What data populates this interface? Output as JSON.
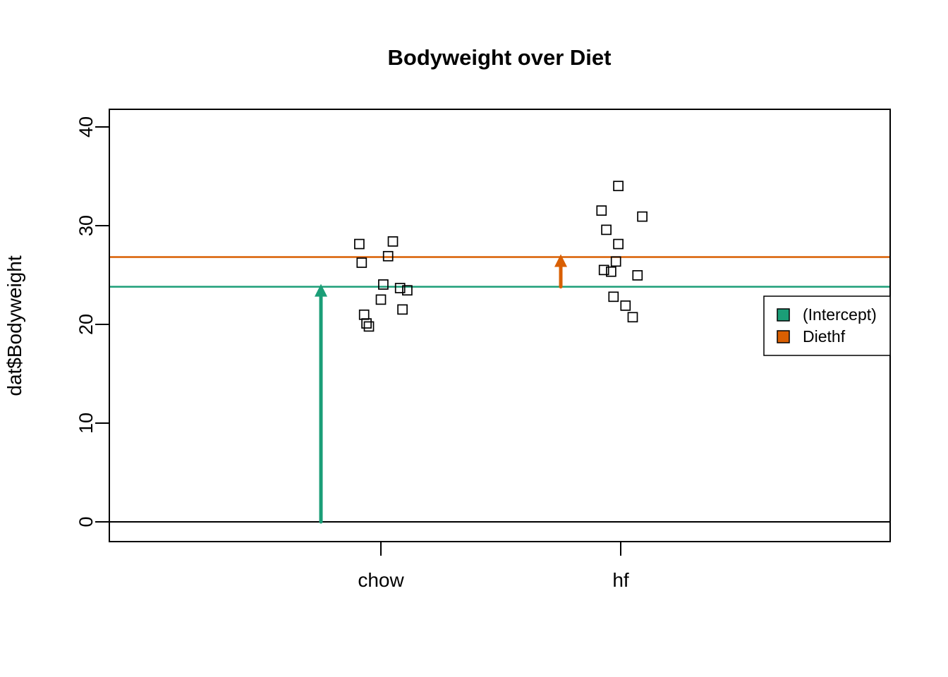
{
  "title": "Bodyweight over Diet",
  "chart_data": {
    "type": "scatter",
    "title": "Bodyweight over Diet",
    "xlabel": "",
    "ylabel": "dat$Bodyweight",
    "x_tick_labels": [
      "chow",
      "hf"
    ],
    "categories_x": [
      1,
      2
    ],
    "yticks": [
      0,
      10,
      20,
      30,
      40
    ],
    "ylim": [
      -2,
      41.8
    ],
    "xlim": [
      -0.13,
      3.12
    ],
    "grid": false,
    "marker": "open-square",
    "series": [
      {
        "name": "chow",
        "color": "#000000",
        "points": [
          {
            "x": 0.91,
            "y": 28.14
          },
          {
            "x": 0.92,
            "y": 26.25
          },
          {
            "x": 1.05,
            "y": 28.4
          },
          {
            "x": 1.03,
            "y": 26.91
          },
          {
            "x": 1.01,
            "y": 24.04
          },
          {
            "x": 1.08,
            "y": 23.68
          },
          {
            "x": 1.11,
            "y": 23.45
          },
          {
            "x": 1.0,
            "y": 22.51
          },
          {
            "x": 1.09,
            "y": 21.51
          },
          {
            "x": 0.93,
            "y": 20.98
          },
          {
            "x": 0.94,
            "y": 20.1
          },
          {
            "x": 0.95,
            "y": 19.79
          }
        ]
      },
      {
        "name": "hf",
        "color": "#000000",
        "points": [
          {
            "x": 1.99,
            "y": 34.02
          },
          {
            "x": 1.92,
            "y": 31.53
          },
          {
            "x": 2.09,
            "y": 30.92
          },
          {
            "x": 1.94,
            "y": 29.58
          },
          {
            "x": 1.99,
            "y": 28.14
          },
          {
            "x": 1.98,
            "y": 26.37
          },
          {
            "x": 1.93,
            "y": 25.51
          },
          {
            "x": 1.96,
            "y": 25.34
          },
          {
            "x": 2.07,
            "y": 24.97
          },
          {
            "x": 1.97,
            "y": 22.8
          },
          {
            "x": 2.02,
            "y": 21.9
          },
          {
            "x": 2.05,
            "y": 20.73
          }
        ]
      }
    ],
    "hlines": [
      {
        "name": "zero-line",
        "y": 0,
        "color": "#000000",
        "width": 2
      },
      {
        "name": "intercept-line",
        "y": 23.81,
        "color": "#1B9E77",
        "width": 2.5
      },
      {
        "name": "diethf-line",
        "y": 26.82,
        "color": "#D95F02",
        "width": 2.5
      }
    ],
    "arrows": [
      {
        "name": "intercept-arrow",
        "x": 0.75,
        "y_from": 0,
        "y_to": 23.81,
        "color": "#1B9E77",
        "width": 5
      },
      {
        "name": "diethf-arrow",
        "x": 1.75,
        "y_from": 23.81,
        "y_to": 26.82,
        "color": "#D95F02",
        "width": 5
      }
    ],
    "legend": {
      "position": "right",
      "items": [
        {
          "label": "(Intercept)",
          "color": "#1B9E77"
        },
        {
          "label": "Diethf",
          "color": "#D95F02"
        }
      ]
    }
  }
}
